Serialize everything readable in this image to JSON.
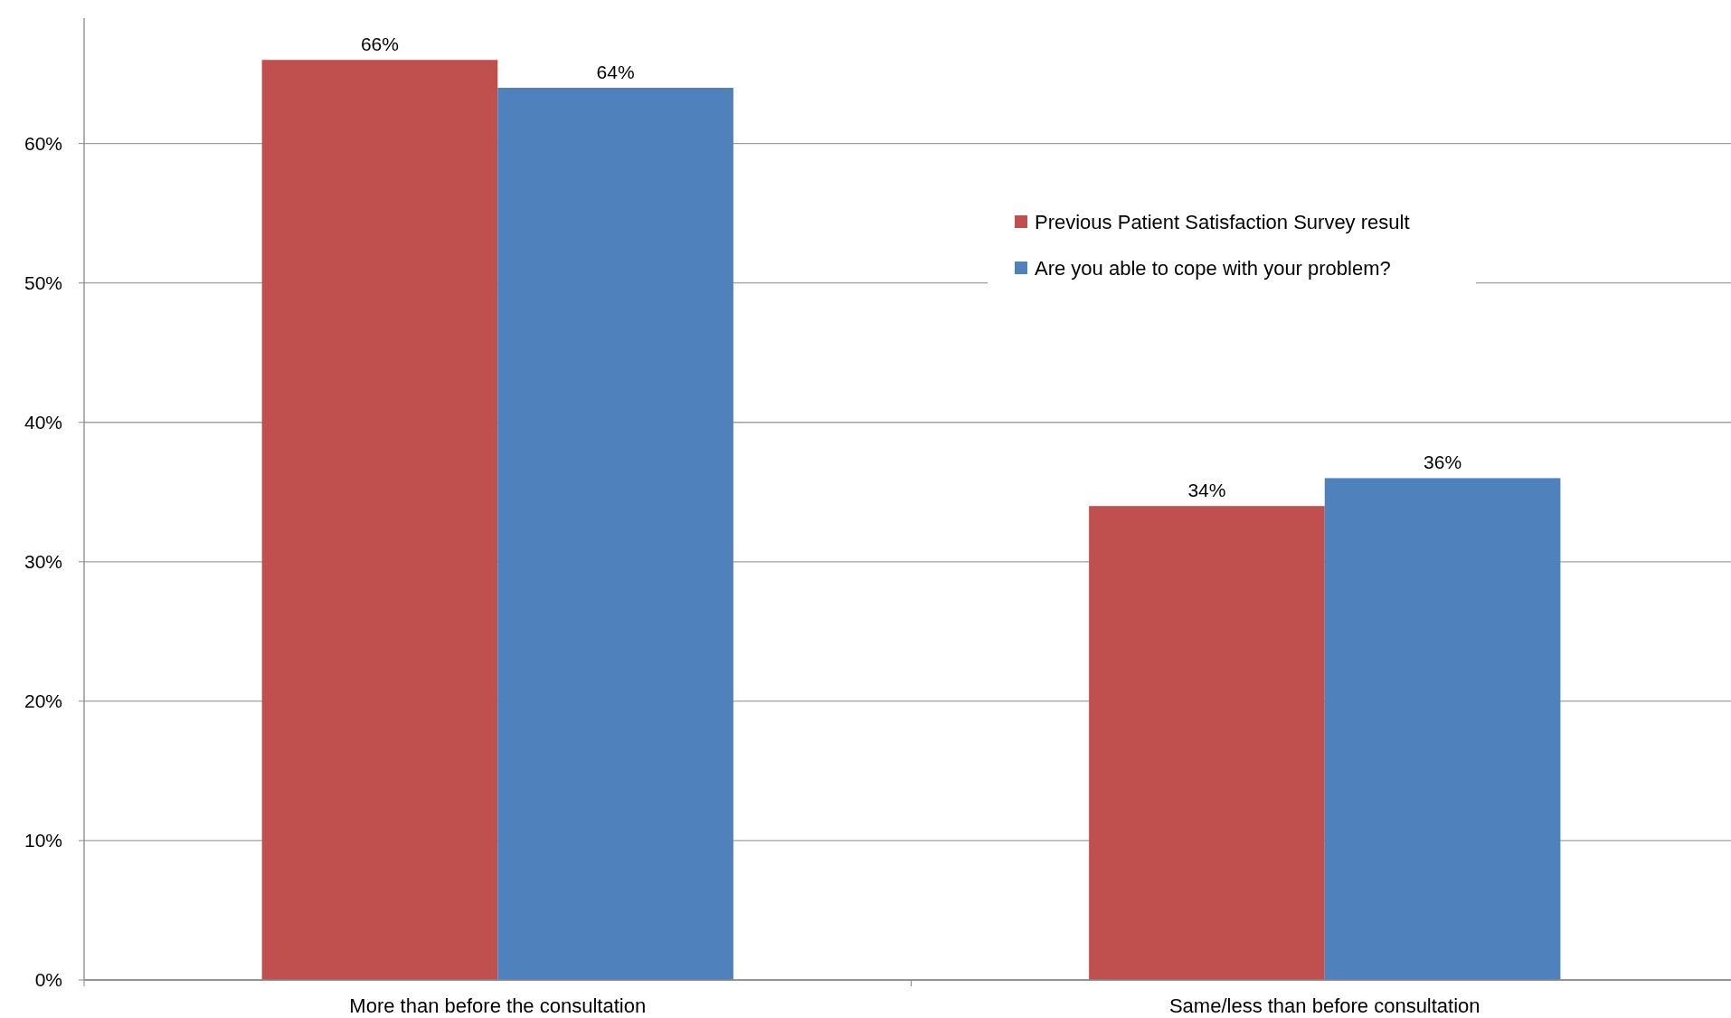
{
  "chart_data": {
    "type": "bar",
    "categories": [
      "More than before the consultation",
      "Same/less than before consultation"
    ],
    "series": [
      {
        "name": "Previous Patient Satisfaction Survey result",
        "color": "#c0504d",
        "values": [
          66,
          34
        ]
      },
      {
        "name": "Are you able to cope with your problem?",
        "color": "#4f81bd",
        "values": [
          64,
          36
        ]
      }
    ],
    "ylim": [
      0,
      69
    ],
    "yticks": [
      {
        "value": 0,
        "label": "0%"
      },
      {
        "value": 10,
        "label": "10%"
      },
      {
        "value": 20,
        "label": "20%"
      },
      {
        "value": 30,
        "label": "30%"
      },
      {
        "value": 40,
        "label": "40%"
      },
      {
        "value": 50,
        "label": "50%"
      },
      {
        "value": 60,
        "label": "60%"
      }
    ],
    "value_labels": [
      [
        "66%",
        "34%"
      ],
      [
        "64%",
        "36%"
      ]
    ],
    "grid": "y",
    "legend": "top right"
  }
}
